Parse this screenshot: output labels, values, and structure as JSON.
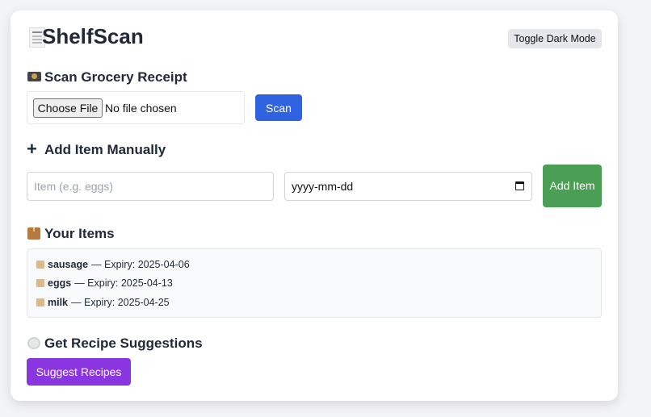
{
  "app": {
    "title": "ShelfScan",
    "title_icon": "receipt-icon",
    "toggle_label": "Toggle Dark Mode"
  },
  "scan": {
    "heading": "Scan Grocery Receipt",
    "heading_icon": "camera-flash-icon",
    "choose_file": "Choose File",
    "file_status": "No file chosen",
    "scan_label": "Scan"
  },
  "add": {
    "heading": "Add Item Manually",
    "heading_icon": "plus-icon",
    "item_placeholder": "Item (e.g. eggs)",
    "date_placeholder": "yyyy-mm-dd",
    "add_label": "Add Item"
  },
  "items": {
    "heading": "Your Items",
    "heading_icon": "package-icon",
    "separator": "—",
    "expiry_label": "Expiry:",
    "list": [
      {
        "name": "sausage",
        "expiry": "2025-04-06"
      },
      {
        "name": "eggs",
        "expiry": "2025-04-13"
      },
      {
        "name": "milk",
        "expiry": "2025-04-25"
      }
    ]
  },
  "recipes": {
    "heading": "Get Recipe Suggestions",
    "heading_icon": "plate-icon",
    "suggest_label": "Suggest Recipes"
  },
  "colors": {
    "scan": "#2f63e0",
    "add": "#4a9f55",
    "suggest": "#8a36e0"
  }
}
